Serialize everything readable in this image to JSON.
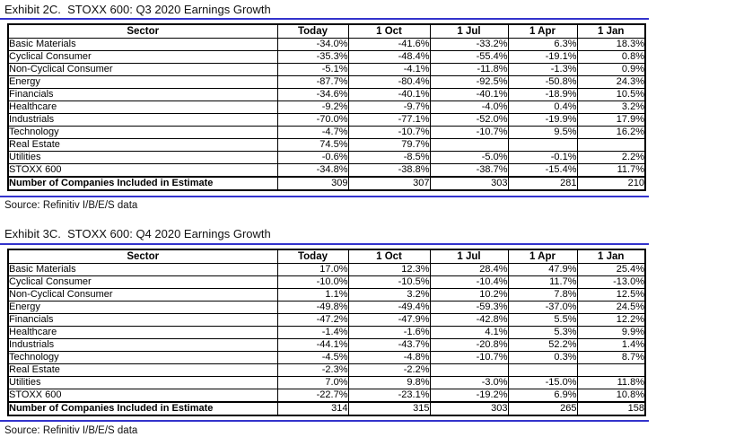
{
  "colors": {
    "rule_blue": "#3333cc",
    "table_border": "#000000",
    "text": "#000000",
    "background": "#ffffff"
  },
  "exhibits": [
    {
      "title": "Exhibit 2C.  STOXX 600: Q3 2020 Earnings Growth",
      "source": "Source: Refinitiv I/B/E/S data",
      "columns": [
        "Sector",
        "Today",
        "1 Oct",
        "1 Jul",
        "1 Apr",
        "1 Jan"
      ],
      "rows": [
        {
          "sector": "Basic Materials",
          "values": [
            "-34.0%",
            "-41.6%",
            "-33.2%",
            "6.3%",
            "18.3%"
          ]
        },
        {
          "sector": "Cyclical Consumer",
          "values": [
            "-35.3%",
            "-48.4%",
            "-55.4%",
            "-19.1%",
            "0.8%"
          ]
        },
        {
          "sector": "Non-Cyclical Consumer",
          "values": [
            "-5.1%",
            "-4.1%",
            "-11.8%",
            "-1.3%",
            "0.9%"
          ]
        },
        {
          "sector": "Energy",
          "values": [
            "-87.7%",
            "-80.4%",
            "-92.5%",
            "-50.8%",
            "24.3%"
          ]
        },
        {
          "sector": "Financials",
          "values": [
            "-34.6%",
            "-40.1%",
            "-40.1%",
            "-18.9%",
            "10.5%"
          ]
        },
        {
          "sector": "Healthcare",
          "values": [
            "-9.2%",
            "-9.7%",
            "-4.0%",
            "0.4%",
            "3.2%"
          ]
        },
        {
          "sector": "Industrials",
          "values": [
            "-70.0%",
            "-77.1%",
            "-52.0%",
            "-19.9%",
            "17.9%"
          ]
        },
        {
          "sector": "Technology",
          "values": [
            "-4.7%",
            "-10.7%",
            "-10.7%",
            "9.5%",
            "16.2%"
          ]
        },
        {
          "sector": "Real Estate",
          "values": [
            "74.5%",
            "79.7%",
            "",
            "",
            ""
          ]
        },
        {
          "sector": "Utilities",
          "values": [
            "-0.6%",
            "-8.5%",
            "-5.0%",
            "-0.1%",
            "2.2%"
          ]
        },
        {
          "sector": "STOXX 600",
          "values": [
            "-34.8%",
            "-38.8%",
            "-38.7%",
            "-15.4%",
            "11.7%"
          ]
        },
        {
          "sector": "Number of Companies Included in Estimate",
          "values": [
            "309",
            "307",
            "303",
            "281",
            "210"
          ],
          "summary": true
        }
      ]
    },
    {
      "title": "Exhibit 3C.  STOXX 600: Q4 2020 Earnings Growth",
      "source": "Source: Refinitiv I/B/E/S data",
      "columns": [
        "Sector",
        "Today",
        "1 Oct",
        "1 Jul",
        "1 Apr",
        "1 Jan"
      ],
      "rows": [
        {
          "sector": "Basic Materials",
          "values": [
            "17.0%",
            "12.3%",
            "28.4%",
            "47.9%",
            "25.4%"
          ]
        },
        {
          "sector": "Cyclical Consumer",
          "values": [
            "-10.0%",
            "-10.5%",
            "-10.4%",
            "11.7%",
            "-13.0%"
          ]
        },
        {
          "sector": "Non-Cyclical Consumer",
          "values": [
            "1.1%",
            "3.2%",
            "10.2%",
            "7.8%",
            "12.5%"
          ]
        },
        {
          "sector": "Energy",
          "values": [
            "-49.8%",
            "-49.4%",
            "-59.3%",
            "-37.0%",
            "24.5%"
          ]
        },
        {
          "sector": "Financials",
          "values": [
            "-47.2%",
            "-47.9%",
            "-42.8%",
            "5.5%",
            "12.2%"
          ]
        },
        {
          "sector": "Healthcare",
          "values": [
            "-1.4%",
            "-1.6%",
            "4.1%",
            "5.3%",
            "9.9%"
          ]
        },
        {
          "sector": "Industrials",
          "values": [
            "-44.1%",
            "-43.7%",
            "-20.8%",
            "52.2%",
            "1.4%"
          ]
        },
        {
          "sector": "Technology",
          "values": [
            "-4.5%",
            "-4.8%",
            "-10.7%",
            "0.3%",
            "8.7%"
          ]
        },
        {
          "sector": "Real Estate",
          "values": [
            "-2.3%",
            "-2.2%",
            "",
            "",
            ""
          ]
        },
        {
          "sector": "Utilities",
          "values": [
            "7.0%",
            "9.8%",
            "-3.0%",
            "-15.0%",
            "11.8%"
          ]
        },
        {
          "sector": "STOXX 600",
          "values": [
            "-22.7%",
            "-23.1%",
            "-19.2%",
            "6.9%",
            "10.8%"
          ]
        },
        {
          "sector": "Number of Companies Included in Estimate",
          "values": [
            "314",
            "315",
            "303",
            "265",
            "158"
          ],
          "summary": true
        }
      ]
    }
  ]
}
